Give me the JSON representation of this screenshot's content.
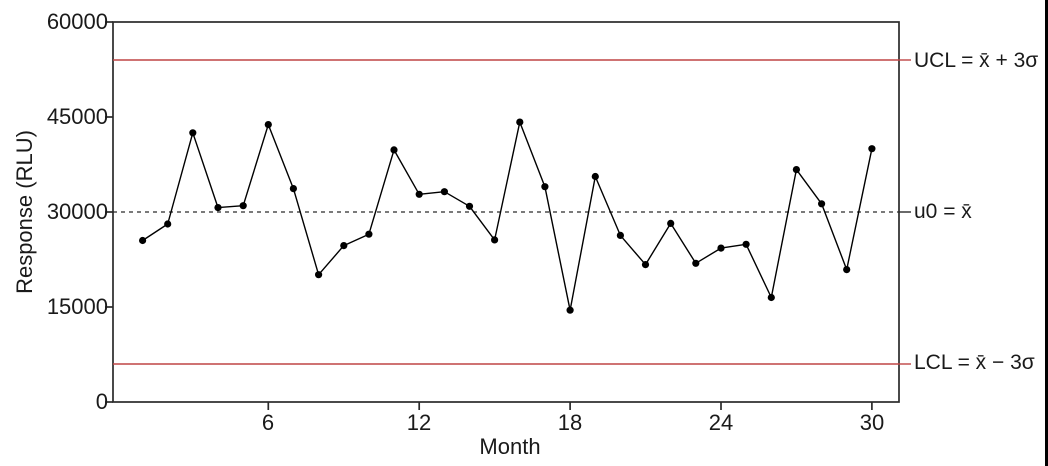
{
  "chart_data": {
    "type": "line",
    "title": "",
    "xlabel": "Month",
    "ylabel": "Response (RLU)",
    "x": [
      1,
      2,
      3,
      4,
      5,
      6,
      7,
      8,
      9,
      10,
      11,
      12,
      13,
      14,
      15,
      16,
      17,
      18,
      19,
      20,
      21,
      22,
      23,
      24,
      25,
      26,
      27,
      28,
      29,
      30
    ],
    "values": [
      25500,
      28100,
      42500,
      30700,
      31000,
      43800,
      33700,
      20100,
      24700,
      26500,
      39800,
      32800,
      33200,
      30900,
      25600,
      44200,
      34000,
      14500,
      35600,
      26300,
      21700,
      28200,
      21900,
      24300,
      24900,
      16500,
      36700,
      31300,
      20900,
      40000
    ],
    "xlim": [
      0,
      31
    ],
    "ylim": [
      0,
      60000
    ],
    "yticks": [
      0,
      15000,
      30000,
      45000,
      60000
    ],
    "ytick_labels": [
      "0",
      "15000",
      "30000",
      "45000",
      "60000"
    ],
    "xticks": [
      6,
      12,
      18,
      24,
      30
    ],
    "xtick_labels": [
      "6",
      "12",
      "18",
      "24",
      "30"
    ],
    "grid": false,
    "legend": "none",
    "line_color": "#000000",
    "point_color": "#000000",
    "reference_lines": {
      "ucl": {
        "value": 54000,
        "label": "UCL = x̄ + 3σ",
        "color": "#bf4545",
        "style": "solid"
      },
      "center": {
        "value": 30000,
        "label": "u0 = x̄",
        "color": "#2a2a2a",
        "style": "dashed"
      },
      "lcl": {
        "value": 6000,
        "label": "LCL = x̄ − 3σ",
        "color": "#bf4545",
        "style": "solid"
      }
    }
  }
}
